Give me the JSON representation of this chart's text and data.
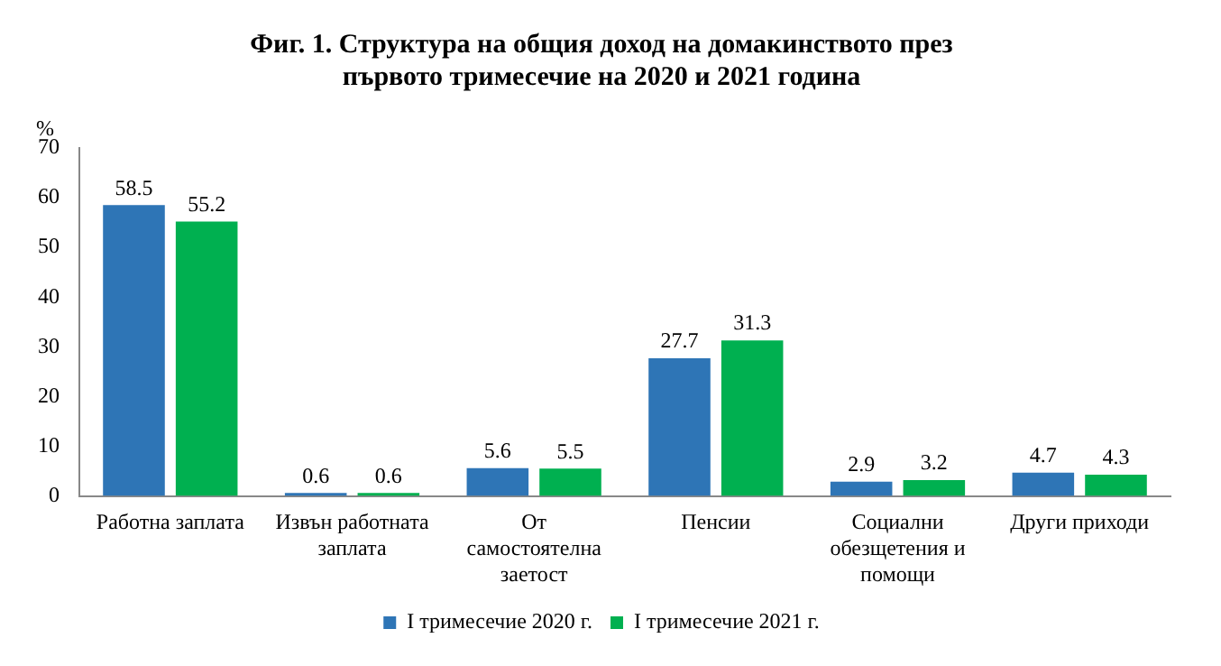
{
  "chart_data": {
    "type": "bar",
    "title": "Фиг. 1. Структура на общия доход на домакинството през първото тримесечие на 2020 и 2021 година",
    "ylabel": "%",
    "categories": [
      "Работна заплата",
      "Извън работната заплата",
      "От самостоятелна заетост",
      "Пенсии",
      "Социални обезщетения и помощи",
      "Други приходи"
    ],
    "series": [
      {
        "name": "I тримесечие 2020 г.",
        "color": "#2e75b6",
        "values": [
          58.5,
          0.6,
          5.6,
          27.7,
          2.9,
          4.7
        ]
      },
      {
        "name": "I тримесечие 2021 г.",
        "color": "#00b050",
        "values": [
          55.2,
          0.6,
          5.5,
          31.3,
          3.2,
          4.3
        ]
      }
    ],
    "ylim": [
      0,
      70
    ],
    "yticks": [
      0,
      10,
      20,
      30,
      40,
      50,
      60,
      70
    ],
    "grid": false,
    "legend": "bottom",
    "data_labels": true
  }
}
